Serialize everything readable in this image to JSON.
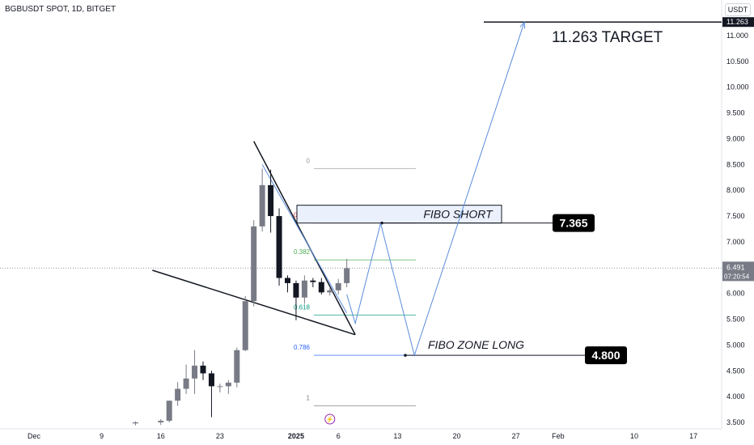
{
  "header": {
    "symbol": "BGBUSDT SPOT, 1D, BITGET",
    "currency": "USDT"
  },
  "chart_data": {
    "type": "candlestick",
    "y_ticks": [
      3.5,
      4.0,
      4.5,
      5.0,
      5.5,
      6.0,
      6.5,
      7.0,
      7.5,
      8.0,
      8.5,
      9.0,
      9.5,
      10.0,
      10.5,
      11.0
    ],
    "x_ticks": [
      {
        "label": "Dec",
        "date": "2024-12-01"
      },
      {
        "label": "9",
        "date": "2024-12-09"
      },
      {
        "label": "16",
        "date": "2024-12-16"
      },
      {
        "label": "23",
        "date": "2024-12-23"
      },
      {
        "label": "2025",
        "date": "2025-01-01"
      },
      {
        "label": "6",
        "date": "2025-01-06"
      },
      {
        "label": "13",
        "date": "2025-01-13"
      },
      {
        "label": "20",
        "date": "2025-01-20"
      },
      {
        "label": "27",
        "date": "2025-01-27"
      },
      {
        "label": "Feb",
        "date": "2025-02-01"
      },
      {
        "label": "10",
        "date": "2025-02-10"
      },
      {
        "label": "17",
        "date": "2025-02-17"
      }
    ],
    "candles": [
      {
        "date": "2024-12-13",
        "o": 3.48,
        "h": 3.52,
        "l": 3.44,
        "c": 3.5
      },
      {
        "date": "2024-12-16",
        "o": 3.5,
        "h": 3.56,
        "l": 3.45,
        "c": 3.53
      },
      {
        "date": "2024-12-17",
        "o": 3.53,
        "h": 3.92,
        "l": 3.5,
        "c": 3.92
      },
      {
        "date": "2024-12-18",
        "o": 3.92,
        "h": 4.28,
        "l": 3.82,
        "c": 4.15
      },
      {
        "date": "2024-12-19",
        "o": 4.15,
        "h": 4.62,
        "l": 4.05,
        "c": 4.35
      },
      {
        "date": "2024-12-20",
        "o": 4.35,
        "h": 4.9,
        "l": 4.05,
        "c": 4.6
      },
      {
        "date": "2024-12-21",
        "o": 4.6,
        "h": 4.68,
        "l": 4.32,
        "c": 4.45
      },
      {
        "date": "2024-12-22",
        "o": 4.45,
        "h": 4.5,
        "l": 3.6,
        "c": 4.2
      },
      {
        "date": "2024-12-23",
        "o": 4.2,
        "h": 4.25,
        "l": 4.08,
        "c": 4.2
      },
      {
        "date": "2024-12-24",
        "o": 4.2,
        "h": 4.32,
        "l": 4.05,
        "c": 4.27
      },
      {
        "date": "2024-12-25",
        "o": 4.27,
        "h": 4.95,
        "l": 4.18,
        "c": 4.9
      },
      {
        "date": "2024-12-26",
        "o": 4.9,
        "h": 5.95,
        "l": 4.88,
        "c": 5.85
      },
      {
        "date": "2024-12-27",
        "o": 5.85,
        "h": 7.42,
        "l": 5.75,
        "c": 7.3
      },
      {
        "date": "2024-12-28",
        "o": 7.3,
        "h": 8.42,
        "l": 7.2,
        "c": 8.1
      },
      {
        "date": "2024-12-29",
        "o": 8.1,
        "h": 8.4,
        "l": 7.18,
        "c": 7.5
      },
      {
        "date": "2024-12-30",
        "o": 7.5,
        "h": 7.65,
        "l": 6.15,
        "c": 6.3
      },
      {
        "date": "2024-12-31",
        "o": 6.3,
        "h": 6.35,
        "l": 6.02,
        "c": 6.2
      },
      {
        "date": "2025-01-01",
        "o": 6.2,
        "h": 6.25,
        "l": 5.48,
        "c": 5.92
      },
      {
        "date": "2025-01-02",
        "o": 5.92,
        "h": 6.35,
        "l": 5.8,
        "c": 6.25
      },
      {
        "date": "2025-01-03",
        "o": 6.25,
        "h": 6.3,
        "l": 6.12,
        "c": 6.22
      },
      {
        "date": "2025-01-04",
        "o": 6.22,
        "h": 6.3,
        "l": 5.98,
        "c": 6.02
      },
      {
        "date": "2025-01-05",
        "o": 6.02,
        "h": 6.1,
        "l": 5.96,
        "c": 6.06
      },
      {
        "date": "2025-01-06",
        "o": 6.06,
        "h": 6.28,
        "l": 5.98,
        "c": 6.2
      },
      {
        "date": "2025-01-07",
        "o": 6.2,
        "h": 6.67,
        "l": 6.12,
        "c": 6.49
      }
    ],
    "fib_levels": [
      {
        "label": "0",
        "value": 8.42
      },
      {
        "label": "0.236",
        "value": 7.365
      },
      {
        "label": "0.382",
        "value": 6.65
      },
      {
        "label": "0.618",
        "value": 5.58
      },
      {
        "label": "0.786",
        "value": 4.8
      },
      {
        "label": "1",
        "value": 3.82
      }
    ],
    "annotations": {
      "target_text": "11.263 TARGET",
      "target_value": 11.263,
      "short_text": "FIBO SHORT",
      "short_value": "7.365",
      "long_text": "FIBO ZONE LONG",
      "long_value": "4.800",
      "last_price": "6.491",
      "countdown": "07:20:54",
      "target_axis_label": "11.263"
    },
    "projection_path": [
      {
        "date": "2025-01-08",
        "v": 5.42
      },
      {
        "date": "2025-01-11",
        "v": 7.36
      },
      {
        "date": "2025-01-15",
        "v": 4.8
      },
      {
        "date": "2025-01-28",
        "v": 11.26
      }
    ],
    "channel_path": [
      {
        "date": "2024-12-28",
        "v": 8.5
      },
      {
        "date": "2025-01-07",
        "v": 5.62
      }
    ],
    "wedge_upper": [
      {
        "date": "2024-12-27",
        "v": 8.95
      },
      {
        "date": "2025-01-08",
        "v": 5.2
      }
    ],
    "wedge_lower": [
      {
        "date": "2024-12-15",
        "v": 6.45
      },
      {
        "date": "2025-01-08",
        "v": 5.2
      }
    ],
    "colors": {
      "bull": "#787b86",
      "bear": "#131722",
      "projection": "#5b8cdc",
      "fib_0": "#9598a1",
      "fib_0236": "#f23645",
      "fib_0382": "#4caf50",
      "fib_0618": "#089981",
      "fib_0786": "#2962ff",
      "fib_1": "#787b86",
      "price_label": "#787b86"
    }
  }
}
